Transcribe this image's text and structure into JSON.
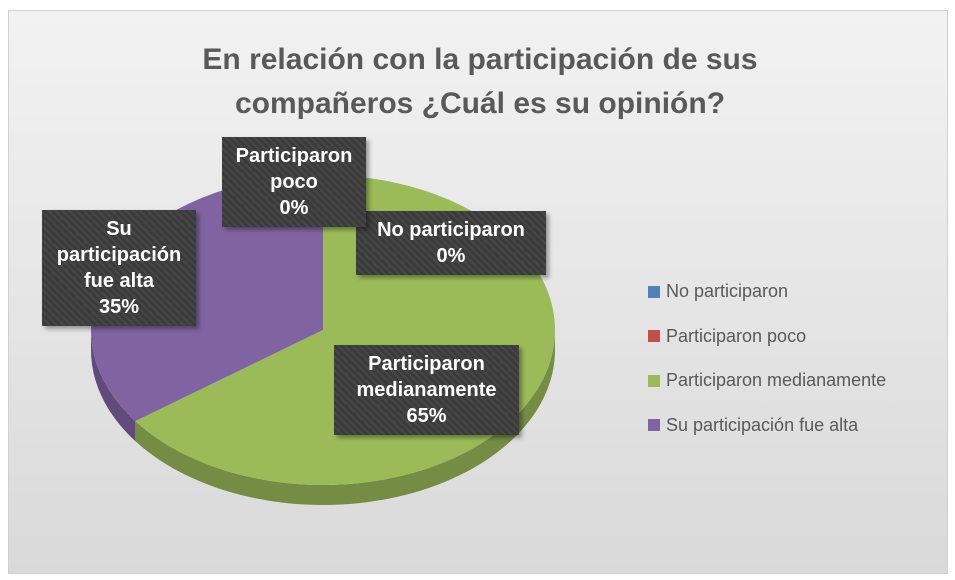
{
  "chart_data": {
    "type": "pie",
    "title": "En relación con la participación de sus compañeros ¿Cuál es su opinión?",
    "categories": [
      "No participaron",
      "Participaron poco",
      "Participaron medianamente",
      "Su participación fue alta"
    ],
    "values": [
      0,
      0,
      65,
      35
    ],
    "value_labels": [
      "0%",
      "0%",
      "65%",
      "35%"
    ],
    "colors": [
      "#4f81bd",
      "#c0504d",
      "#9bbb59",
      "#8064a2"
    ],
    "legend": "right"
  }
}
